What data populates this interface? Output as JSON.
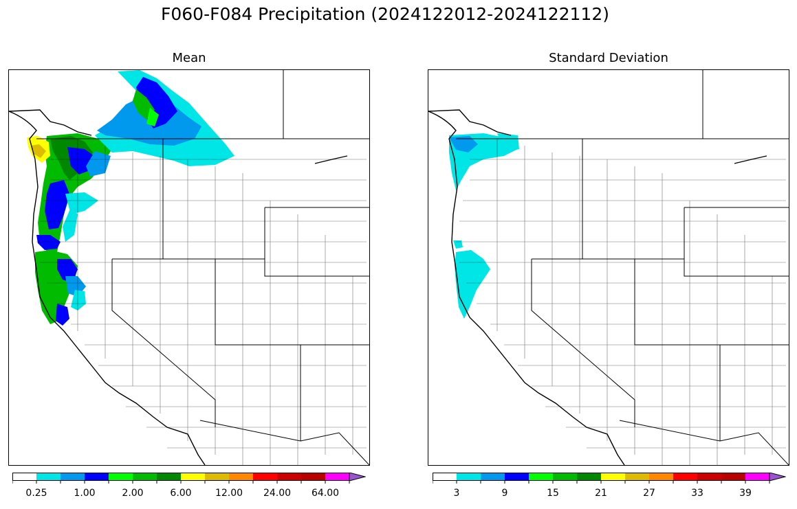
{
  "figure": {
    "title": "F060-F084 Precipitation (2024122012-2024122112)"
  },
  "panels": [
    {
      "title": "Mean",
      "colorbar": {
        "colors": [
          "#ffffff",
          "#00e5e5",
          "#0099ee",
          "#0000ff",
          "#00ff00",
          "#00bb00",
          "#008800",
          "#ffff00",
          "#ddbb00",
          "#ff8800",
          "#ff0000",
          "#cc0000",
          "#bb0000",
          "#ff00ff",
          "#9955cc"
        ],
        "extend": "max",
        "tick_labels": [
          "0.25",
          "1.00",
          "2.00",
          "6.00",
          "12.00",
          "24.00",
          "64.00"
        ]
      }
    },
    {
      "title": "Standard Deviation",
      "colorbar": {
        "colors": [
          "#ffffff",
          "#00e5e5",
          "#0099ee",
          "#0000ff",
          "#00ff00",
          "#00bb00",
          "#008800",
          "#ffff00",
          "#ddbb00",
          "#ff8800",
          "#ff0000",
          "#cc0000",
          "#bb0000",
          "#ff00ff",
          "#9955cc"
        ],
        "extend": "max",
        "tick_labels": [
          "3",
          "9",
          "15",
          "21",
          "27",
          "33",
          "39"
        ]
      }
    }
  ]
}
